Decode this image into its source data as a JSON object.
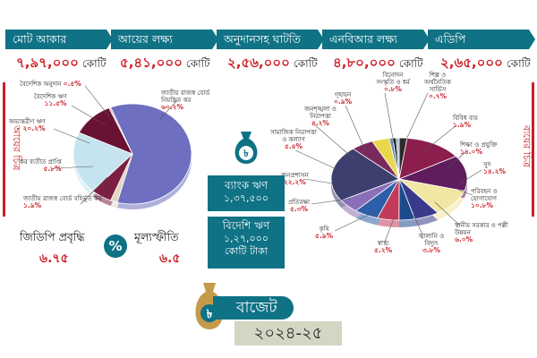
{
  "headers": [
    {
      "label": "মোট আকার",
      "value": "৭,৯৭,০০০",
      "unit": "কোটি"
    },
    {
      "label": "আয়ের লক্ষ্য",
      "value": "৫,৪১,০০০",
      "unit": "কোটি"
    },
    {
      "label": "অনুদানসহ ঘাটতি",
      "value": "২,৫৬,০০০",
      "unit": "কোটি"
    },
    {
      "label": "এনবিআর লক্ষ্য",
      "value": "৪,৮০,০০০",
      "unit": "কোটি"
    },
    {
      "label": "এডিপি",
      "value": "২,৬৫,০০০",
      "unit": "কোটি"
    }
  ],
  "side_labels": {
    "left": "আয়ের চিত্র",
    "right": "ব্যয়ের চিত্র"
  },
  "bank_loan": {
    "label": "ব্যাংক ঋণ",
    "value": "১,৩৭,৫০০"
  },
  "foreign_loan": {
    "label": "বিদেশি ঋণ",
    "value": "১,২৭,০০০",
    "unit": "কোটি টাকা"
  },
  "gdp": {
    "label": "জিডিপি প্রবৃদ্ধি",
    "value": "৬.৭৫"
  },
  "inflation": {
    "label": "মূল্যস্ফীতি",
    "value": "৬.৫"
  },
  "percent_symbol": "%",
  "taka_symbol": "৳",
  "budget": {
    "title": "বাজেট",
    "year": "২০২৪-২৫"
  },
  "colors": {
    "accent": "#0f7285",
    "highlight": "#cc1f26",
    "year_bg": "#d2d6c3"
  },
  "chart_data": [
    {
      "type": "pie",
      "categories": [
        "জাতীয় রাজস্ব বোর্ড নিয়ন্ত্রিত কর",
        "জাতীয় রাজস্ব বোর্ড বহির্ভূত কর",
        "কর ব্যতীত প্রাপ্তি",
        "অভ্যন্তরীণ ঋণ",
        "বৈদেশিক ঋণ",
        "বৈদেশিক অনুদান"
      ],
      "values": [
        60.2,
        1.9,
        5.8,
        20.2,
        11.5,
        0.5
      ],
      "value_labels": [
        "৬০.২%",
        "১.৯%",
        "৫.৮%",
        "২০.২%",
        "১১.৫%",
        "০.৫%"
      ],
      "colors": [
        "#6e6fc0",
        "#e0d8c2",
        "#7b1f43",
        "#c5e4f0",
        "#6a1234",
        "#d9b5b5"
      ]
    },
    {
      "type": "pie",
      "categories": [
        "বিবিধ ব্যয়",
        "শিক্ষা ও প্রযুক্তি",
        "সুদ",
        "পরিবহন ও যোগাযোগ",
        "স্থানীয় সরকার ও পল্লী উন্নয়ন",
        "জ্বালানি ও বিদ্যুৎ",
        "স্বাস্থ্য",
        "কৃষি",
        "প্রতিরক্ষা",
        "জনপ্রশাসন",
        "সামাজিক নিরাপত্তা ও কল্যাণ",
        "জনশৃঙ্খলা ও নিরাপত্তা",
        "গৃহায়ন",
        "বিনোদন সংস্কৃতি ও ধর্ম",
        "শিল্প ও অর্থনৈতিক সার্ভিস"
      ],
      "values": [
        1.9,
        14.0,
        14.2,
        10.8,
        6.0,
        3.8,
        5.2,
        5.9,
        5.3,
        22.2,
        5.4,
        4.2,
        0.9,
        0.8,
        0.7
      ],
      "value_labels": [
        "১.৯%",
        "১৪.০%",
        "১৪.২%",
        "১০.৮%",
        "৬.০%",
        "৩.৮%",
        "৫.২%",
        "৫.৯%",
        "৫.৩%",
        "২২.২%",
        "৫.৪%",
        "৪.২%",
        "০.৯%",
        "০.৮%",
        "০.৭%"
      ],
      "colors": [
        "#2a2a2a",
        "#8c1e4e",
        "#5f1d5e",
        "#f2e6a3",
        "#3a3a8c",
        "#1d4a8c",
        "#c23b5a",
        "#2d5fa8",
        "#8a6fb8",
        "#3d3f6e",
        "#7a2a5a",
        "#e8d84a",
        "#6a8cb0",
        "#222222",
        "#a0b8c8"
      ]
    }
  ]
}
